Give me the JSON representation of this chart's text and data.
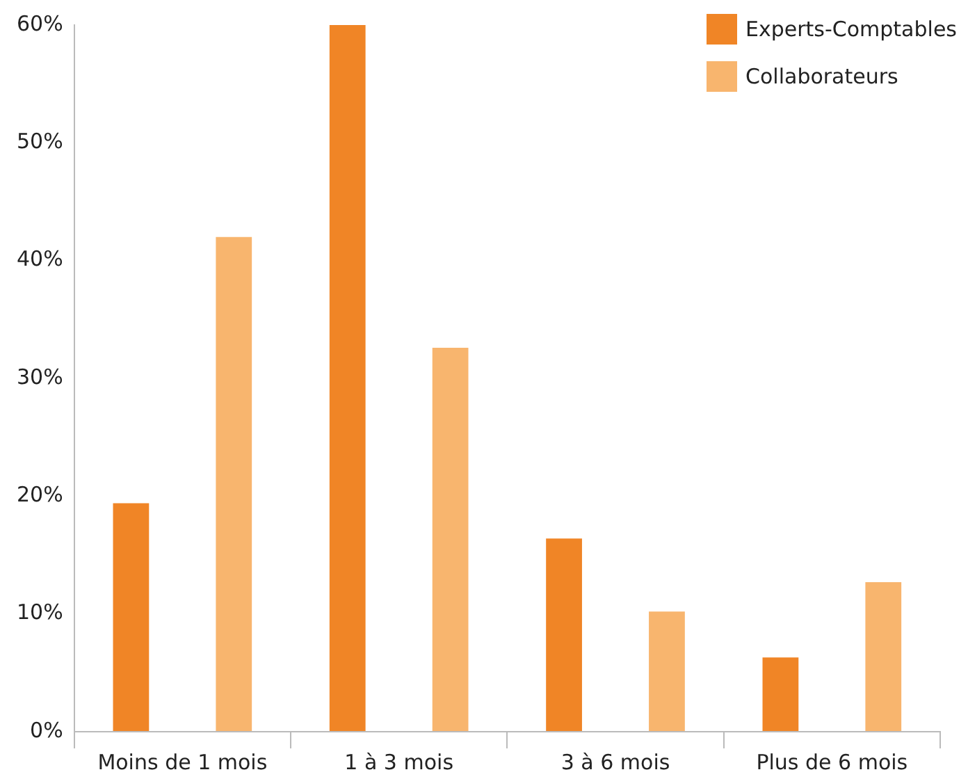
{
  "chart_data": {
    "type": "bar",
    "categories": [
      "Moins de 1 mois",
      "1 à 3 mois",
      "3 à 6 mois",
      "Plus de 6 mois"
    ],
    "series": [
      {
        "name": "Experts-Comptables",
        "color": "#f08526",
        "values": [
          19.4,
          60,
          16.4,
          6.3
        ]
      },
      {
        "name": "Collaborateurs",
        "color": "#f8b56e",
        "values": [
          42,
          32.6,
          10.2,
          12.7
        ]
      }
    ],
    "ylim": [
      0,
      60
    ],
    "yticks": [
      {
        "value": 0,
        "label": "0%"
      },
      {
        "value": 10,
        "label": "10%"
      },
      {
        "value": 20,
        "label": "20%"
      },
      {
        "value": 30,
        "label": "30%"
      },
      {
        "value": 40,
        "label": "40%"
      },
      {
        "value": 50,
        "label": "50%"
      },
      {
        "value": 60,
        "label": "60%"
      }
    ],
    "grid": false,
    "legend": "top right"
  }
}
